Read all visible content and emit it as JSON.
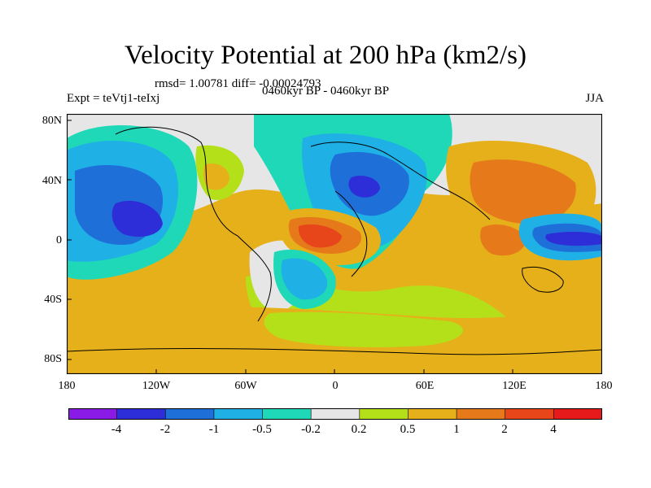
{
  "title": "Velocity Potential at 200 hPa (km2/s)",
  "stats": "rmsd= 1.00781 diff= -0.00024793",
  "experiment": "Expt = teVtj1-teIxj",
  "period": "0460kyr BP - 0460kyr BP",
  "season": "JJA",
  "y_ticks": [
    "80N",
    "40N",
    "0",
    "40S",
    "80S"
  ],
  "x_ticks": [
    "180",
    "120W",
    "60W",
    "0",
    "60E",
    "120E",
    "180"
  ],
  "colorbar": {
    "colors": [
      "#8a1ae6",
      "#2e2ed8",
      "#1f6fd8",
      "#1fb0e6",
      "#1fd8b8",
      "#e6e6e6",
      "#b4e01a",
      "#e6b01a",
      "#e67a1a",
      "#e6461a",
      "#e61a1a"
    ],
    "labels": [
      "-4",
      "-2",
      "-1",
      "-0.5",
      "-0.2",
      "0.2",
      "0.5",
      "1",
      "2",
      "4"
    ]
  },
  "palette": {
    "neg4": "#2e2ed8",
    "neg2": "#1f6fd8",
    "neg1": "#1fb0e6",
    "neg05": "#1fd8b8",
    "zero": "#e6e6e6",
    "pos02": "#b4e01a",
    "pos05": "#e6b01a",
    "pos1": "#e67a1a",
    "pos2": "#e6461a"
  }
}
